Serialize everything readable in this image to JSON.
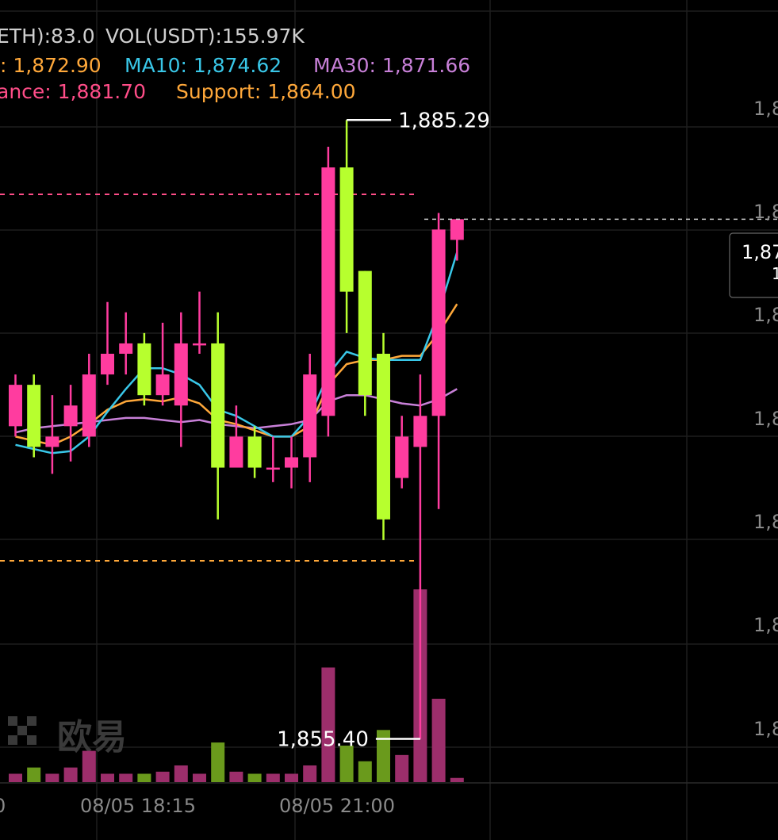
{
  "info": {
    "vol_eth": "ETH):83.0",
    "vol_usdt": "VOL(USDT):155.97K",
    "ma5": ": 1,872.90",
    "ma10": "MA10: 1,874.62",
    "ma30": "MA30: 1,871.66",
    "resistance": "ance: 1,881.70",
    "support": "Support: 1,864.00"
  },
  "annotations": {
    "high": "1,885.29",
    "low": "1,855.40"
  },
  "price_tag": "1,87",
  "watermark": "欧易",
  "colors": {
    "up": "#ff3c9f",
    "down": "#b7ff2e",
    "vol_up": "#9c2e6b",
    "vol_down": "#6a9a1c",
    "ma5": "#ffa83a",
    "ma10": "#39c7e8",
    "ma30": "#c880d8",
    "resistance": "#ff4d88",
    "support": "#ffa83a"
  },
  "chart_data": {
    "type": "candlestick",
    "x_axis": {
      "tick_labels": [
        "0",
        "08/05 18:15",
        "08/05 21:00"
      ]
    },
    "y_axis": {
      "tick_labels": [
        "1,8",
        "1,8",
        "1,8",
        "1,8",
        "1,8",
        "1,8",
        "1,8"
      ]
    },
    "resistance": 1881.7,
    "support": 1864.0,
    "high_annotation": 1885.29,
    "low_annotation": 1855.4,
    "candles": [
      {
        "o": 1870.5,
        "c": 1872.5,
        "h": 1873.0,
        "l": 1870.0
      },
      {
        "o": 1872.5,
        "c": 1869.5,
        "h": 1873.0,
        "l": 1869.0
      },
      {
        "o": 1869.5,
        "c": 1870.0,
        "h": 1872.0,
        "l": 1868.2
      },
      {
        "o": 1870.5,
        "c": 1871.5,
        "h": 1872.5,
        "l": 1868.8
      },
      {
        "o": 1870.0,
        "c": 1873.0,
        "h": 1874.0,
        "l": 1869.5
      },
      {
        "o": 1873.0,
        "c": 1874.0,
        "h": 1876.5,
        "l": 1872.5
      },
      {
        "o": 1874.0,
        "c": 1874.5,
        "h": 1876.0,
        "l": 1873.0
      },
      {
        "o": 1874.5,
        "c": 1872.0,
        "h": 1875.0,
        "l": 1871.5
      },
      {
        "o": 1872.0,
        "c": 1873.0,
        "h": 1875.5,
        "l": 1871.5
      },
      {
        "o": 1871.5,
        "c": 1874.5,
        "h": 1876.0,
        "l": 1869.5
      },
      {
        "o": 1874.5,
        "c": 1874.5,
        "h": 1877.0,
        "l": 1874.0
      },
      {
        "o": 1874.5,
        "c": 1868.5,
        "h": 1876.0,
        "l": 1866.0
      },
      {
        "o": 1868.5,
        "c": 1870.0,
        "h": 1871.5,
        "l": 1868.5
      },
      {
        "o": 1870.0,
        "c": 1868.5,
        "h": 1870.5,
        "l": 1868.0
      },
      {
        "o": 1868.5,
        "c": 1868.5,
        "h": 1870.0,
        "l": 1867.8
      },
      {
        "o": 1868.5,
        "c": 1869.0,
        "h": 1870.0,
        "l": 1867.5
      },
      {
        "o": 1869.0,
        "c": 1873.0,
        "h": 1874.0,
        "l": 1867.8
      },
      {
        "o": 1871.0,
        "c": 1883.0,
        "h": 1884.0,
        "l": 1870.0
      },
      {
        "o": 1883.0,
        "c": 1877.0,
        "h": 1885.29,
        "l": 1875.0
      },
      {
        "o": 1878.0,
        "c": 1872.0,
        "h": 1878.0,
        "l": 1871.0
      },
      {
        "o": 1874.0,
        "c": 1866.0,
        "h": 1875.0,
        "l": 1865.0
      },
      {
        "o": 1868.0,
        "c": 1870.0,
        "h": 1871.0,
        "l": 1867.5
      },
      {
        "o": 1869.5,
        "c": 1871.0,
        "h": 1873.0,
        "l": 1855.4
      },
      {
        "o": 1871.0,
        "c": 1880.0,
        "h": 1880.8,
        "l": 1866.5
      },
      {
        "o": 1879.5,
        "c": 1880.5,
        "h": 1880.5,
        "l": 1878.5
      }
    ],
    "volume": [
      8,
      14,
      8,
      14,
      30,
      8,
      8,
      8,
      10,
      16,
      8,
      38,
      10,
      8,
      8,
      8,
      16,
      110,
      35,
      20,
      50,
      26,
      185,
      80,
      4
    ],
    "ma5": [
      1870.0,
      1869.8,
      1869.6,
      1870.0,
      1870.6,
      1871.3,
      1871.7,
      1871.8,
      1871.7,
      1871.9,
      1871.6,
      1870.8,
      1870.6,
      1870.3,
      1870.0,
      1870.0,
      1870.5,
      1872.5,
      1873.5,
      1873.7,
      1873.7,
      1873.9,
      1873.9,
      1875.0,
      1876.4
    ],
    "ma10": [
      1869.6,
      1869.4,
      1869.2,
      1869.3,
      1870.0,
      1871.2,
      1872.3,
      1873.3,
      1873.3,
      1873.0,
      1872.5,
      1871.3,
      1871.0,
      1870.5,
      1870.0,
      1870.0,
      1871.0,
      1873.0,
      1874.1,
      1873.8,
      1873.7,
      1873.7,
      1873.7,
      1876.0,
      1878.9
    ],
    "ma30": [
      1870.2,
      1870.4,
      1870.5,
      1870.6,
      1870.7,
      1870.8,
      1870.9,
      1870.9,
      1870.8,
      1870.7,
      1870.8,
      1870.6,
      1870.5,
      1870.4,
      1870.5,
      1870.6,
      1870.8,
      1871.7,
      1872.0,
      1872.0,
      1871.8,
      1871.6,
      1871.5,
      1871.8,
      1872.3
    ]
  }
}
